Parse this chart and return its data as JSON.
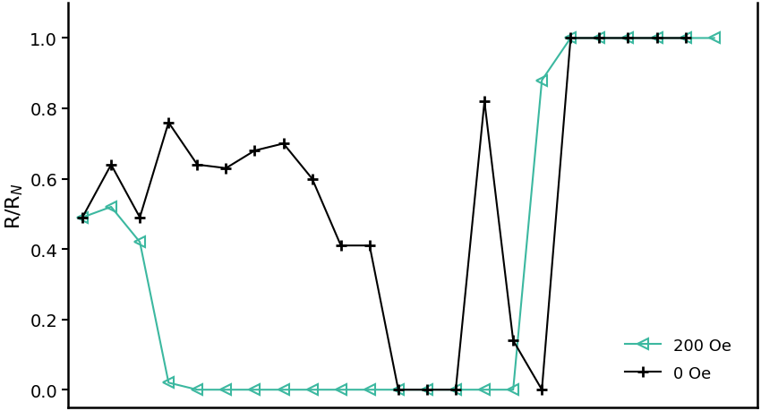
{
  "title": "",
  "ylabel": "R/R$_N$",
  "background_color": "#ffffff",
  "series_200Oe": {
    "label": "200 Oe",
    "color": "#3cb8a0",
    "x": [
      1,
      2,
      3,
      4,
      5,
      6,
      7,
      8,
      9,
      10,
      11,
      12,
      13,
      14,
      15,
      16,
      17,
      18,
      19,
      20,
      21,
      22,
      23
    ],
    "y": [
      0.49,
      0.52,
      0.42,
      0.02,
      0.0,
      0.0,
      0.0,
      0.0,
      0.0,
      0.0,
      0.0,
      0.0,
      0.0,
      0.0,
      0.0,
      0.0,
      0.88,
      1.0,
      1.0,
      1.0,
      1.0,
      1.0,
      1.0
    ]
  },
  "series_0Oe": {
    "label": "0 Oe",
    "color": "#000000",
    "x": [
      1,
      2,
      3,
      4,
      5,
      6,
      7,
      8,
      9,
      10,
      11,
      12,
      13,
      14,
      15,
      16,
      17,
      18,
      19,
      20,
      21,
      22
    ],
    "y": [
      0.49,
      0.64,
      0.49,
      0.76,
      0.64,
      0.63,
      0.68,
      0.7,
      0.6,
      0.41,
      0.41,
      0.0,
      0.0,
      0.0,
      0.82,
      0.14,
      0.0,
      1.0,
      1.0,
      1.0,
      1.0,
      1.0
    ]
  },
  "ylim": [
    -0.05,
    1.1
  ],
  "yticks": [
    0,
    0.2,
    0.4,
    0.6,
    0.8,
    1.0
  ],
  "xlim": [
    0.5,
    24.5
  ],
  "legend_loc": "lower right",
  "linewidth": 1.5,
  "markersize": 8
}
